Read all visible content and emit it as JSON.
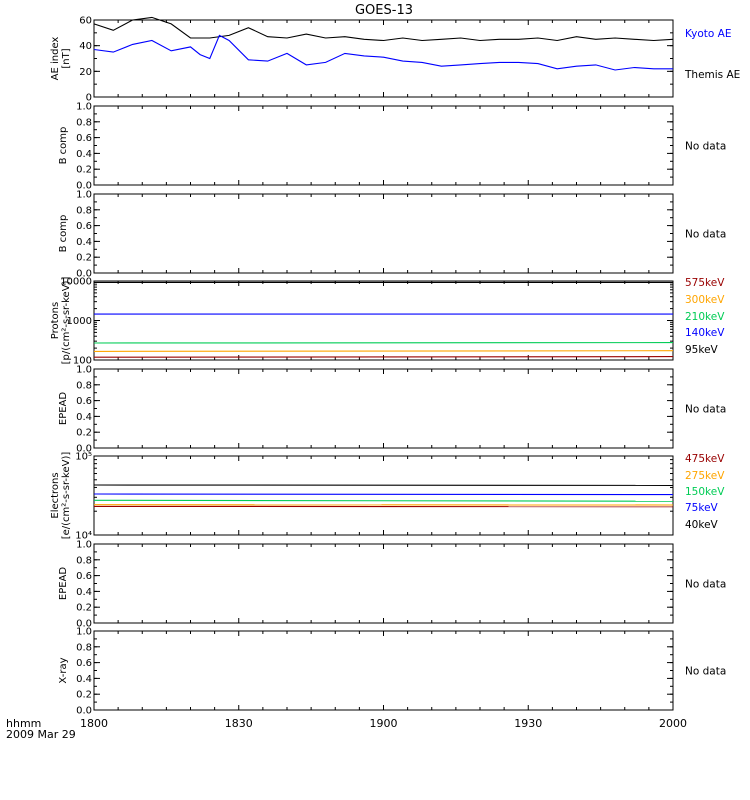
{
  "title": "GOES-13",
  "x_axis": {
    "tick_labels": [
      "1800",
      "1830",
      "1900",
      "1930",
      "2000"
    ],
    "row_label": "hhmm",
    "date_label": "2009 Mar 29"
  },
  "colors": {
    "black": "#000000",
    "blue": "#0000ff",
    "green": "#00cc55",
    "orange": "#ffa500",
    "dark_red": "#990000"
  },
  "chart_data": [
    {
      "type": "line",
      "ylabel": [
        "AE index",
        "[nT]"
      ],
      "ylim": [
        0,
        60
      ],
      "yticks": [
        0,
        20,
        40,
        60
      ],
      "x_range": [
        "1800",
        "2000"
      ],
      "legend": [
        "Kyoto AE",
        "Themis AE"
      ],
      "series": [
        {
          "name": "Themis AE",
          "color": "#000000",
          "x": [
            0,
            4,
            8,
            12,
            16,
            20,
            24,
            28,
            32,
            36,
            40,
            44,
            48,
            52,
            56,
            60,
            64,
            68,
            72,
            76,
            80,
            84,
            88,
            92,
            96,
            100,
            104,
            108,
            112,
            116,
            120
          ],
          "y": [
            57,
            52,
            60,
            62,
            57,
            46,
            46,
            48,
            54,
            47,
            46,
            49,
            46,
            47,
            45,
            44,
            46,
            44,
            45,
            46,
            44,
            45,
            45,
            46,
            44,
            47,
            45,
            46,
            45,
            44,
            45
          ]
        },
        {
          "name": "Kyoto AE",
          "color": "#0000ff",
          "x": [
            0,
            4,
            8,
            12,
            16,
            20,
            22,
            24,
            26,
            28,
            32,
            36,
            40,
            44,
            48,
            52,
            56,
            60,
            64,
            68,
            72,
            76,
            80,
            84,
            88,
            92,
            96,
            100,
            104,
            108,
            112,
            116,
            120
          ],
          "y": [
            37,
            35,
            41,
            44,
            36,
            39,
            33,
            30,
            48,
            44,
            29,
            28,
            34,
            25,
            27,
            34,
            32,
            31,
            28,
            27,
            24,
            25,
            26,
            27,
            27,
            26,
            22,
            24,
            25,
            21,
            23,
            22,
            22
          ]
        }
      ]
    },
    {
      "type": "line",
      "ylabel": [
        "B comp"
      ],
      "ylim": [
        0,
        1
      ],
      "yticks": [
        0.0,
        0.2,
        0.4,
        0.6,
        0.8,
        1.0
      ],
      "ytick_labels": [
        "0.0",
        "0.2",
        "0.4",
        "0.6",
        "0.8",
        "1.0"
      ],
      "status": "No data",
      "series": []
    },
    {
      "type": "line",
      "ylabel": [
        "B comp"
      ],
      "ylim": [
        0,
        1
      ],
      "yticks": [
        0.0,
        0.2,
        0.4,
        0.6,
        0.8,
        1.0
      ],
      "ytick_labels": [
        "0.0",
        "0.2",
        "0.4",
        "0.6",
        "0.8",
        "1.0"
      ],
      "status": "No data",
      "series": []
    },
    {
      "type": "line",
      "ylabel": [
        "Protons",
        "[p/(cm²-s-sr-keV)]"
      ],
      "yscale": "log",
      "ylim": [
        100,
        10000
      ],
      "yticks": [
        100,
        1000,
        10000
      ],
      "ytick_labels": [
        "100",
        "1000",
        "10000"
      ],
      "legend": [
        "575keV",
        "300keV",
        "210keV",
        "140keV",
        "95keV"
      ],
      "series": [
        {
          "name": "95keV",
          "color": "#000000",
          "x": [
            0,
            120
          ],
          "y": [
            9200,
            9200
          ]
        },
        {
          "name": "140keV",
          "color": "#0000ff",
          "x": [
            0,
            120
          ],
          "y": [
            1450,
            1450
          ]
        },
        {
          "name": "210keV",
          "color": "#00cc55",
          "x": [
            0,
            120
          ],
          "y": [
            270,
            275
          ]
        },
        {
          "name": "300keV",
          "color": "#ffa500",
          "x": [
            0,
            120
          ],
          "y": [
            165,
            172
          ]
        },
        {
          "name": "575keV",
          "color": "#990000",
          "x": [
            0,
            120
          ],
          "y": [
            118,
            122
          ]
        }
      ]
    },
    {
      "type": "line",
      "ylabel": [
        "EPEAD"
      ],
      "ylim": [
        0,
        1
      ],
      "yticks": [
        0.0,
        0.2,
        0.4,
        0.6,
        0.8,
        1.0
      ],
      "ytick_labels": [
        "0.0",
        "0.2",
        "0.4",
        "0.6",
        "0.8",
        "1.0"
      ],
      "status": "No data",
      "series": []
    },
    {
      "type": "line",
      "ylabel": [
        "Electrons",
        "[e/(cm²-s-sr-keV)]"
      ],
      "yscale": "log",
      "ylim": [
        10000,
        100000
      ],
      "yticks": [
        10000,
        100000
      ],
      "ytick_labels": [
        "10⁴",
        "10⁵"
      ],
      "legend": [
        "475keV",
        "275keV",
        "150keV",
        "75keV",
        "40keV"
      ],
      "series": [
        {
          "name": "40keV",
          "color": "#000000",
          "x": [
            0,
            120
          ],
          "y": [
            43000,
            42500
          ]
        },
        {
          "name": "75keV",
          "color": "#0000ff",
          "x": [
            0,
            120
          ],
          "y": [
            33000,
            32500
          ]
        },
        {
          "name": "150keV",
          "color": "#00cc55",
          "x": [
            0,
            120
          ],
          "y": [
            27500,
            26800
          ]
        },
        {
          "name": "275keV",
          "color": "#ffa500",
          "x": [
            0,
            120
          ],
          "y": [
            24200,
            24000
          ]
        },
        {
          "name": "475keV",
          "color": "#990000",
          "x": [
            0,
            120
          ],
          "y": [
            23000,
            22800
          ]
        }
      ]
    },
    {
      "type": "line",
      "ylabel": [
        "EPEAD"
      ],
      "ylim": [
        0,
        1
      ],
      "yticks": [
        0.0,
        0.2,
        0.4,
        0.6,
        0.8,
        1.0
      ],
      "ytick_labels": [
        "0.0",
        "0.2",
        "0.4",
        "0.6",
        "0.8",
        "1.0"
      ],
      "status": "No data",
      "series": []
    },
    {
      "type": "line",
      "ylabel": [
        "X-ray"
      ],
      "ylim": [
        0,
        1
      ],
      "yticks": [
        0.0,
        0.2,
        0.4,
        0.6,
        0.8,
        1.0
      ],
      "ytick_labels": [
        "0.0",
        "0.2",
        "0.4",
        "0.6",
        "0.8",
        "1.0"
      ],
      "status": "No data",
      "series": []
    }
  ]
}
